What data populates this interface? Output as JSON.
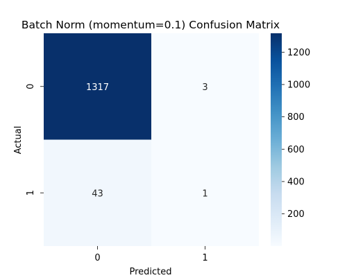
{
  "chart_data": {
    "type": "heatmap",
    "title": "Batch Norm (momentum=0.1) Confusion Matrix",
    "xlabel": "Predicted",
    "ylabel": "Actual",
    "x_categories": [
      "0",
      "1"
    ],
    "y_categories": [
      "0",
      "1"
    ],
    "values": [
      [
        1317,
        3
      ],
      [
        43,
        1
      ]
    ],
    "colormap": "Blues",
    "colorbar": {
      "range": [
        1,
        1317
      ],
      "ticks": [
        200,
        400,
        600,
        800,
        1000,
        1200
      ],
      "tick_labels": [
        "200",
        "400",
        "600",
        "800",
        "1000",
        "1200"
      ]
    },
    "grid": false
  }
}
